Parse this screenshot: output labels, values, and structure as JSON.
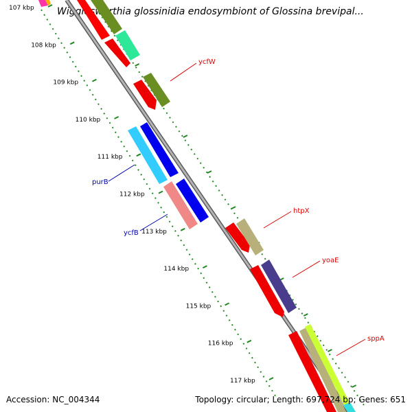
{
  "title": "Wigglesworthia glossinidia endosymbiont of Glossina brevipal...",
  "footer": {
    "accession": "Accession: NC_004344",
    "summary": "Topology: circular; Length: 697,724 bp; Genes: 651"
  },
  "ticks": [
    "107 kbp",
    "108 kbp",
    "109 kbp",
    "110 kbp",
    "111 kbp",
    "112 kbp",
    "113 kbp",
    "114 kbp",
    "115 kbp",
    "116 kbp",
    "117 kbp"
  ],
  "gene_labels": [
    {
      "name": "ycfW",
      "color": "#dd0000"
    },
    {
      "name": "purB",
      "color": "#0000aa"
    },
    {
      "name": "ycfB",
      "color": "#0000aa"
    },
    {
      "name": "htpX",
      "color": "#dd0000"
    },
    {
      "name": "yoaE",
      "color": "#dd0000"
    },
    {
      "name": "sppA",
      "color": "#dd0000"
    }
  ],
  "colors": {
    "backbone": "#8c8c8c",
    "tick_mark": "#228822",
    "forward_cds": "#ff0000",
    "reverse_cds": "#0000ee"
  }
}
